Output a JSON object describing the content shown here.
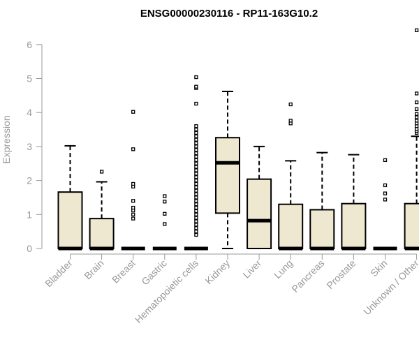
{
  "chart_data": {
    "type": "box",
    "title": "ENSG00000230116 - RP11-163G10.2",
    "ylabel": "Expression",
    "xlabel": "",
    "ylim": [
      0,
      6.7
    ],
    "yticks": [
      0,
      1,
      2,
      3,
      4,
      5,
      6
    ],
    "grid": false,
    "colors": {
      "box_fill": "#EFE8D0",
      "stroke": "#000000",
      "axis_text": "#999999"
    },
    "categories": [
      "Bladder",
      "Brain",
      "Breast",
      "Gastric",
      "Hematopoietic cells",
      "Kidney",
      "Liver",
      "Lung",
      "Pancreas",
      "Prostate",
      "Skin",
      "Unknown / Other"
    ],
    "boxes": [
      {
        "q1": 0,
        "median": 0,
        "q3": 1.66,
        "whisker_low": 0,
        "whisker_high": 3.02,
        "outliers": []
      },
      {
        "q1": 0,
        "median": 0,
        "q3": 0.88,
        "whisker_low": 0,
        "whisker_high": 1.96,
        "outliers": [
          2.26
        ]
      },
      {
        "q1": 0,
        "median": 0,
        "q3": 0,
        "whisker_low": 0,
        "whisker_high": 0,
        "outliers": [
          0.88,
          1.0,
          1.12,
          1.2,
          1.4,
          1.82,
          1.9,
          2.92,
          4.02
        ]
      },
      {
        "q1": 0,
        "median": 0,
        "q3": 0,
        "whisker_low": 0,
        "whisker_high": 0,
        "outliers": [
          0.72,
          1.02,
          1.38,
          1.54
        ]
      },
      {
        "q1": 0,
        "median": 0,
        "q3": 0,
        "whisker_low": 0,
        "whisker_high": 0,
        "outliers": [
          0.4,
          0.5,
          0.6,
          0.7,
          0.8,
          0.9,
          1.0,
          1.1,
          1.2,
          1.3,
          1.4,
          1.5,
          1.6,
          1.7,
          1.8,
          1.9,
          2.0,
          2.1,
          2.2,
          2.3,
          2.4,
          2.5,
          2.6,
          2.7,
          2.8,
          2.9,
          3.0,
          3.1,
          3.2,
          3.3,
          3.4,
          3.5,
          3.6,
          4.26,
          4.72,
          4.76,
          5.04
        ]
      },
      {
        "q1": 1.04,
        "median": 2.52,
        "q3": 3.26,
        "whisker_low": 0,
        "whisker_high": 4.62,
        "outliers": []
      },
      {
        "q1": 0,
        "median": 0.82,
        "q3": 2.04,
        "whisker_low": 0,
        "whisker_high": 3.0,
        "outliers": []
      },
      {
        "q1": 0,
        "median": 0,
        "q3": 1.3,
        "whisker_low": 0,
        "whisker_high": 2.58,
        "outliers": [
          3.68,
          3.76,
          4.24
        ]
      },
      {
        "q1": 0,
        "median": 0,
        "q3": 1.14,
        "whisker_low": 0,
        "whisker_high": 2.82,
        "outliers": []
      },
      {
        "q1": 0,
        "median": 0,
        "q3": 1.32,
        "whisker_low": 0,
        "whisker_high": 2.76,
        "outliers": []
      },
      {
        "q1": 0,
        "median": 0,
        "q3": 0,
        "whisker_low": 0,
        "whisker_high": 0,
        "outliers": [
          1.44,
          1.62,
          1.86,
          2.6
        ]
      },
      {
        "q1": 0,
        "median": 0,
        "q3": 1.32,
        "whisker_low": 0,
        "whisker_high": 3.3,
        "outliers": [
          3.4,
          3.46,
          3.52,
          3.6,
          3.68,
          3.76,
          3.86,
          3.96,
          4.1,
          4.3,
          4.56,
          6.42
        ]
      }
    ]
  }
}
